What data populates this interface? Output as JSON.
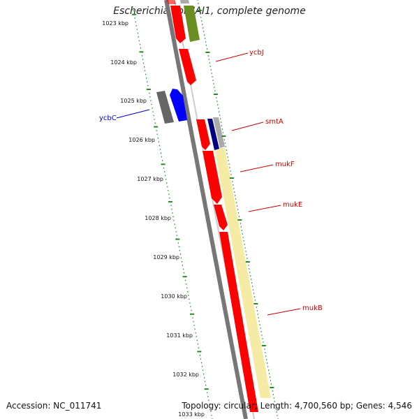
{
  "title": "Escherichia coli IAI1, complete genome",
  "footer": {
    "accession": "Accession: NC_011741",
    "info": "Topology: circular; Length: 4,700,560 bp; Genes: 4,546"
  },
  "colors": {
    "forward_gene": "#ff0000",
    "reverse_gene": "#0000ff",
    "navy_gene": "#000080",
    "olive_gene": "#6b8e23",
    "gray_gene": "#666666",
    "backbone": "#888888",
    "tick": "#228b22",
    "operon_highlight": "#f4e99b",
    "label_red": "#cc0000",
    "label_blue": "#0000cc"
  },
  "ruler": {
    "ticks": [
      "1023 kbp",
      "1024 kbp",
      "1025 kbp",
      "1026 kbp",
      "1027 kbp",
      "1028 kbp",
      "1029 kbp",
      "1030 kbp",
      "1031 kbp",
      "1032 kbp",
      "1033 kbp"
    ]
  },
  "gene_labels": [
    {
      "name": "ycbJ",
      "color": "label_red"
    },
    {
      "name": "smtA",
      "color": "label_red"
    },
    {
      "name": "mukF",
      "color": "label_red"
    },
    {
      "name": "mukE",
      "color": "label_red"
    },
    {
      "name": "mukB",
      "color": "label_red"
    },
    {
      "name": "ycbC",
      "color": "label_blue"
    }
  ]
}
